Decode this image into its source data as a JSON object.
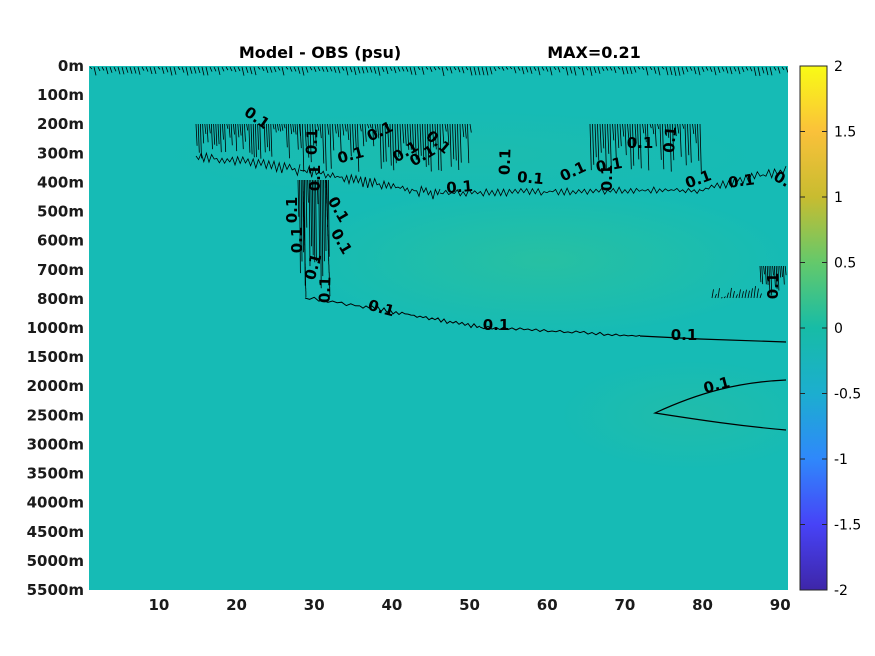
{
  "chart_data": {
    "type": "heatmap",
    "title": "Model - OBS (psu)",
    "max_label": "MAX=0.21",
    "x": {
      "ticks": [
        10,
        20,
        30,
        40,
        50,
        60,
        70,
        80,
        90
      ],
      "range": [
        1,
        91
      ]
    },
    "y": {
      "tick_labels": [
        "0m",
        "100m",
        "200m",
        "300m",
        "400m",
        "500m",
        "600m",
        "700m",
        "800m",
        "1000m",
        "1500m",
        "2000m",
        "2500m",
        "3000m",
        "3500m",
        "4000m",
        "4500m",
        "5000m",
        "5500m"
      ]
    },
    "colorbar": {
      "range": [
        -2,
        2
      ],
      "ticks": [
        "2",
        "1.5",
        "1",
        "0.5",
        "0",
        "-0.5",
        "-1",
        "-1.5",
        "-2"
      ],
      "colormap": [
        "#3e26a8",
        "#4743f7",
        "#2f88fb",
        "#1caecf",
        "#17bca6",
        "#64c96b",
        "#c8bc30",
        "#fac13a",
        "#f9fb15"
      ]
    },
    "field_colors": {
      "background": "#16bbb5",
      "positive": "#23bda8",
      "strong": "#2ac19f"
    },
    "contour_level": 0.1,
    "contour_labels": [
      "0.1",
      "0.1",
      "0.1",
      "0.1",
      "0.1",
      "0.1",
      "0.1",
      "0.1",
      "0.1",
      "0.1",
      "0.1",
      "0.1",
      "0.1",
      "0.1",
      "0.1",
      "0.1",
      "0.1",
      "0.1",
      "0.1",
      "0.1",
      "0.1",
      "0.1",
      "0.1",
      "0.1",
      "0.1",
      "0.1",
      "0.1",
      "0.1",
      "0.1",
      "0.1"
    ]
  }
}
